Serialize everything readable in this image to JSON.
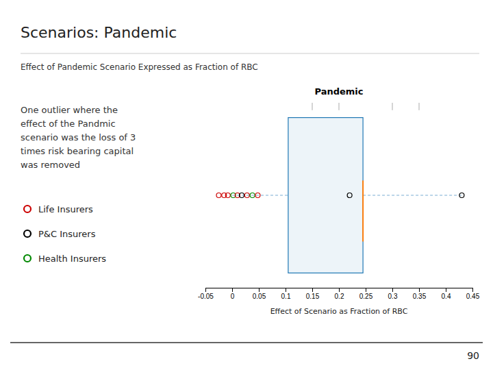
{
  "chart_data": {
    "type": "box",
    "orientation": "horizontal",
    "title": "Pandemic",
    "xlabel": "Effect of Scenario as Fraction of RBC",
    "annotations": [
      "Scenarios:  Pandemic",
      "Effect of Pandemic Scenario Expressed as Fraction of RBC",
      "One outlier where the\neffect of the Pandmic\nscenario was the loss of 3\ntimes risk bearing capital\nwas removed",
      "90"
    ],
    "xlim": [
      -0.05,
      0.45
    ],
    "xticks": [
      -0.05,
      0,
      0.05,
      0.1,
      0.15,
      0.2,
      0.25,
      0.3,
      0.35,
      0.4,
      0.45
    ],
    "box": {
      "whisker_low": 0.0,
      "q1": 0.105,
      "median": 0.245,
      "q3": 0.245,
      "whisker_high": 0.43
    },
    "x": [
      -0.025,
      -0.015,
      -0.008,
      0.002,
      0.01,
      0.018,
      0.028,
      0.038,
      0.048,
      0.22,
      0.43
    ],
    "colors": [
      "#cc0000",
      "#cc0000",
      "#cc0000",
      "#008800",
      "#cc0000",
      "#000000",
      "#cc0000",
      "#008800",
      "#cc0000",
      "#000000",
      "#000000"
    ],
    "reference_ticks": [
      0.15,
      0.2,
      0.3,
      0.35
    ],
    "series": [
      {
        "name": "Life Insurers",
        "color": "#cc0000"
      },
      {
        "name": "P&C Insurers",
        "color": "#000000"
      },
      {
        "name": "Health Insurers",
        "color": "#008800"
      }
    ]
  }
}
